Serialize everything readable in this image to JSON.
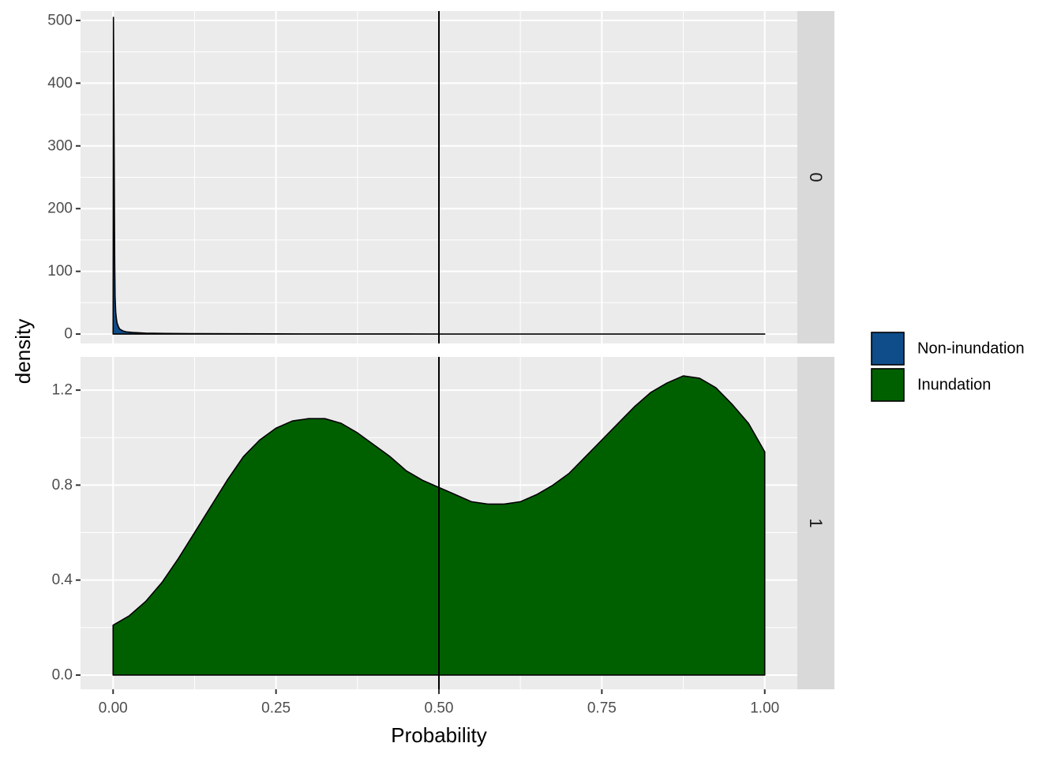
{
  "chart_data": {
    "type": "area",
    "xlabel": "Probability",
    "ylabel": "density",
    "xlim": [
      -0.05,
      1.05
    ],
    "x_ticks": [
      0.0,
      0.25,
      0.5,
      0.75,
      1.0
    ],
    "x_tick_labels": [
      "0.00",
      "0.25",
      "0.50",
      "0.75",
      "1.00"
    ],
    "vline": 0.5,
    "grid": true,
    "legend_position": "right",
    "legend": [
      {
        "label": "Non-inundation",
        "color": "#0F4C8A"
      },
      {
        "label": "Inundation",
        "color": "#006000"
      }
    ],
    "panels": [
      {
        "strip": "0",
        "ylim": [
          -15,
          515
        ],
        "y_ticks": [
          0,
          100,
          200,
          300,
          400,
          500
        ],
        "y_tick_labels": [
          "0",
          "100",
          "200",
          "300",
          "400",
          "500"
        ],
        "series": {
          "name": "Non-inundation",
          "x": [
            0.0,
            0.0005,
            0.001,
            0.0015,
            0.002,
            0.0025,
            0.003,
            0.004,
            0.005,
            0.006,
            0.008,
            0.01,
            0.015,
            0.02,
            0.03,
            0.05,
            0.08,
            0.12,
            0.18,
            0.25,
            0.35,
            0.5,
            0.75,
            1.0
          ],
          "y": [
            0,
            505,
            420,
            310,
            200,
            110,
            60,
            35,
            25,
            18,
            12,
            8,
            5,
            3.5,
            2.5,
            1.5,
            1.0,
            0.7,
            0.5,
            0.3,
            0.2,
            0.1,
            0.05,
            0.0
          ]
        }
      },
      {
        "strip": "1",
        "ylim": [
          -0.06,
          1.34
        ],
        "y_ticks": [
          0.0,
          0.4,
          0.8,
          1.2
        ],
        "y_tick_labels": [
          "0.0",
          "0.4",
          "0.8",
          "1.2"
        ],
        "series": {
          "name": "Inundation",
          "x": [
            0.0,
            0.025,
            0.05,
            0.075,
            0.1,
            0.125,
            0.15,
            0.175,
            0.2,
            0.225,
            0.25,
            0.275,
            0.3,
            0.325,
            0.35,
            0.375,
            0.4,
            0.425,
            0.45,
            0.475,
            0.5,
            0.525,
            0.55,
            0.575,
            0.6,
            0.625,
            0.65,
            0.675,
            0.7,
            0.725,
            0.75,
            0.775,
            0.8,
            0.825,
            0.85,
            0.875,
            0.9,
            0.925,
            0.95,
            0.975,
            1.0
          ],
          "y": [
            0.21,
            0.25,
            0.31,
            0.39,
            0.49,
            0.6,
            0.71,
            0.82,
            0.92,
            0.99,
            1.04,
            1.07,
            1.08,
            1.08,
            1.06,
            1.02,
            0.97,
            0.92,
            0.86,
            0.82,
            0.79,
            0.76,
            0.73,
            0.72,
            0.72,
            0.73,
            0.76,
            0.8,
            0.85,
            0.92,
            0.99,
            1.06,
            1.13,
            1.19,
            1.23,
            1.26,
            1.25,
            1.21,
            1.14,
            1.06,
            0.94
          ]
        }
      }
    ]
  }
}
